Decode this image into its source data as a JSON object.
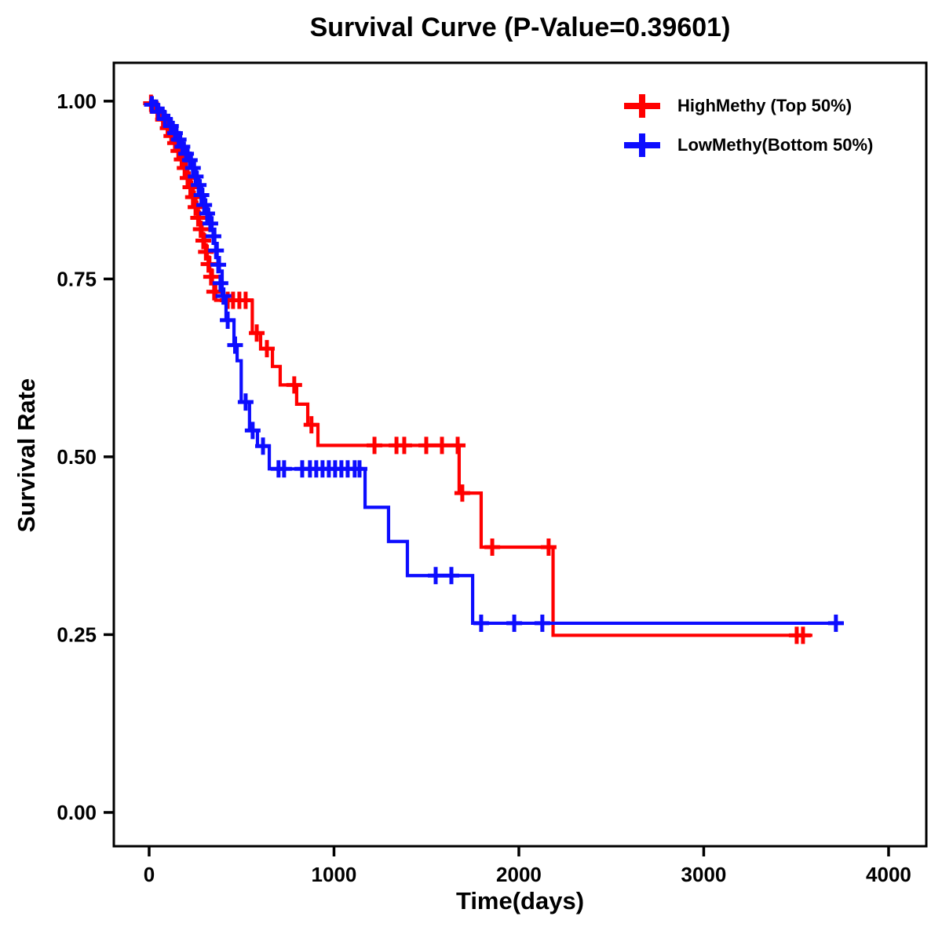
{
  "title": "Survival Curve (P-Value=0.39601)",
  "chart_data": {
    "type": "line",
    "subtype": "kaplan-meier-step",
    "title": "Survival Curve (P-Value=0.39601)",
    "xlabel": "Time(days)",
    "ylabel": "Survival Rate",
    "p_value": "0.39601",
    "grid": false,
    "legend_position": "top-right-inside",
    "xlim": [
      -191,
      4204
    ],
    "ylim": [
      -0.0475,
      1.0539
    ],
    "x_ticks": [
      {
        "value": 0,
        "label": "0"
      },
      {
        "value": 1000,
        "label": "1000"
      },
      {
        "value": 2000,
        "label": "2000"
      },
      {
        "value": 3000,
        "label": "3000"
      },
      {
        "value": 4000,
        "label": "4000"
      }
    ],
    "y_ticks": [
      {
        "value": 1.0,
        "label": "1.00"
      },
      {
        "value": 0.75,
        "label": "0.75"
      },
      {
        "value": 0.5,
        "label": "0.50"
      },
      {
        "value": 0.25,
        "label": "0.25"
      },
      {
        "value": 0.0,
        "label": "0.00"
      }
    ],
    "frame_color": "#000000",
    "series": [
      {
        "name": "HighMethy (Top 50%)",
        "color": "#FF0000",
        "end_time": 3588,
        "steps": [
          [
            0,
            1.0
          ],
          [
            30,
            0.99
          ],
          [
            60,
            0.98
          ],
          [
            90,
            0.968
          ],
          [
            110,
            0.957
          ],
          [
            130,
            0.946
          ],
          [
            150,
            0.935
          ],
          [
            168,
            0.924
          ],
          [
            184,
            0.913
          ],
          [
            200,
            0.899
          ],
          [
            216,
            0.886
          ],
          [
            230,
            0.872
          ],
          [
            244,
            0.858
          ],
          [
            258,
            0.844
          ],
          [
            272,
            0.828
          ],
          [
            286,
            0.812
          ],
          [
            300,
            0.796
          ],
          [
            314,
            0.78
          ],
          [
            328,
            0.762
          ],
          [
            342,
            0.744
          ],
          [
            360,
            0.72
          ],
          [
            558,
            0.674
          ],
          [
            603,
            0.652
          ],
          [
            667,
            0.627
          ],
          [
            709,
            0.601
          ],
          [
            798,
            0.574
          ],
          [
            858,
            0.545
          ],
          [
            913,
            0.516
          ],
          [
            1677,
            0.449
          ],
          [
            1796,
            0.373
          ],
          [
            2185,
            0.249
          ]
        ],
        "censors": [
          [
            10,
            0.997
          ],
          [
            45,
            0.985
          ],
          [
            75,
            0.974
          ],
          [
            100,
            0.962
          ],
          [
            120,
            0.951
          ],
          [
            140,
            0.941
          ],
          [
            158,
            0.93
          ],
          [
            176,
            0.918
          ],
          [
            192,
            0.906
          ],
          [
            208,
            0.892
          ],
          [
            223,
            0.879
          ],
          [
            237,
            0.865
          ],
          [
            251,
            0.851
          ],
          [
            265,
            0.836
          ],
          [
            279,
            0.82
          ],
          [
            293,
            0.804
          ],
          [
            307,
            0.788
          ],
          [
            321,
            0.771
          ],
          [
            335,
            0.753
          ],
          [
            352,
            0.732
          ],
          [
            425,
            0.72
          ],
          [
            454,
            0.72
          ],
          [
            488,
            0.72
          ],
          [
            522,
            0.72
          ],
          [
            582,
            0.674
          ],
          [
            637,
            0.652
          ],
          [
            785,
            0.601
          ],
          [
            878,
            0.545
          ],
          [
            1219,
            0.516
          ],
          [
            1338,
            0.516
          ],
          [
            1380,
            0.516
          ],
          [
            1499,
            0.516
          ],
          [
            1584,
            0.516
          ],
          [
            1669,
            0.516
          ],
          [
            1694,
            0.449
          ],
          [
            1856,
            0.373
          ],
          [
            2161,
            0.373
          ],
          [
            3503,
            0.249
          ],
          [
            3537,
            0.249
          ]
        ]
      },
      {
        "name": "LowMethy(Bottom 50%)",
        "color": "#0D0DFF",
        "end_time": 3758,
        "steps": [
          [
            0,
            1.0
          ],
          [
            40,
            0.99
          ],
          [
            75,
            0.98
          ],
          [
            106,
            0.97
          ],
          [
            130,
            0.96
          ],
          [
            150,
            0.951
          ],
          [
            170,
            0.941
          ],
          [
            190,
            0.931
          ],
          [
            210,
            0.922
          ],
          [
            228,
            0.912
          ],
          [
            245,
            0.9
          ],
          [
            260,
            0.888
          ],
          [
            276,
            0.876
          ],
          [
            290,
            0.861
          ],
          [
            306,
            0.848
          ],
          [
            322,
            0.836
          ],
          [
            340,
            0.82
          ],
          [
            355,
            0.8
          ],
          [
            368,
            0.78
          ],
          [
            380,
            0.761
          ],
          [
            395,
            0.726
          ],
          [
            416,
            0.692
          ],
          [
            459,
            0.657
          ],
          [
            476,
            0.635
          ],
          [
            498,
            0.577
          ],
          [
            543,
            0.537
          ],
          [
            586,
            0.515
          ],
          [
            650,
            0.483
          ],
          [
            1168,
            0.429
          ],
          [
            1295,
            0.381
          ],
          [
            1397,
            0.333
          ],
          [
            1750,
            0.266
          ]
        ],
        "censors": [
          [
            15,
            0.995
          ],
          [
            50,
            0.985
          ],
          [
            85,
            0.975
          ],
          [
            118,
            0.965
          ],
          [
            140,
            0.955
          ],
          [
            160,
            0.946
          ],
          [
            180,
            0.936
          ],
          [
            200,
            0.926
          ],
          [
            220,
            0.917
          ],
          [
            237,
            0.906
          ],
          [
            252,
            0.894
          ],
          [
            268,
            0.882
          ],
          [
            283,
            0.868
          ],
          [
            298,
            0.854
          ],
          [
            314,
            0.842
          ],
          [
            331,
            0.828
          ],
          [
            348,
            0.81
          ],
          [
            362,
            0.79
          ],
          [
            374,
            0.77
          ],
          [
            386,
            0.744
          ],
          [
            402,
            0.726
          ],
          [
            425,
            0.692
          ],
          [
            465,
            0.657
          ],
          [
            522,
            0.577
          ],
          [
            560,
            0.537
          ],
          [
            616,
            0.515
          ],
          [
            700,
            0.483
          ],
          [
            730,
            0.483
          ],
          [
            828,
            0.483
          ],
          [
            870,
            0.483
          ],
          [
            904,
            0.483
          ],
          [
            938,
            0.483
          ],
          [
            972,
            0.483
          ],
          [
            1006,
            0.483
          ],
          [
            1040,
            0.483
          ],
          [
            1074,
            0.483
          ],
          [
            1112,
            0.483
          ],
          [
            1138,
            0.483
          ],
          [
            1550,
            0.333
          ],
          [
            1635,
            0.333
          ],
          [
            1796,
            0.266
          ],
          [
            1975,
            0.266
          ],
          [
            2127,
            0.266
          ],
          [
            3715,
            0.266
          ]
        ]
      }
    ]
  }
}
